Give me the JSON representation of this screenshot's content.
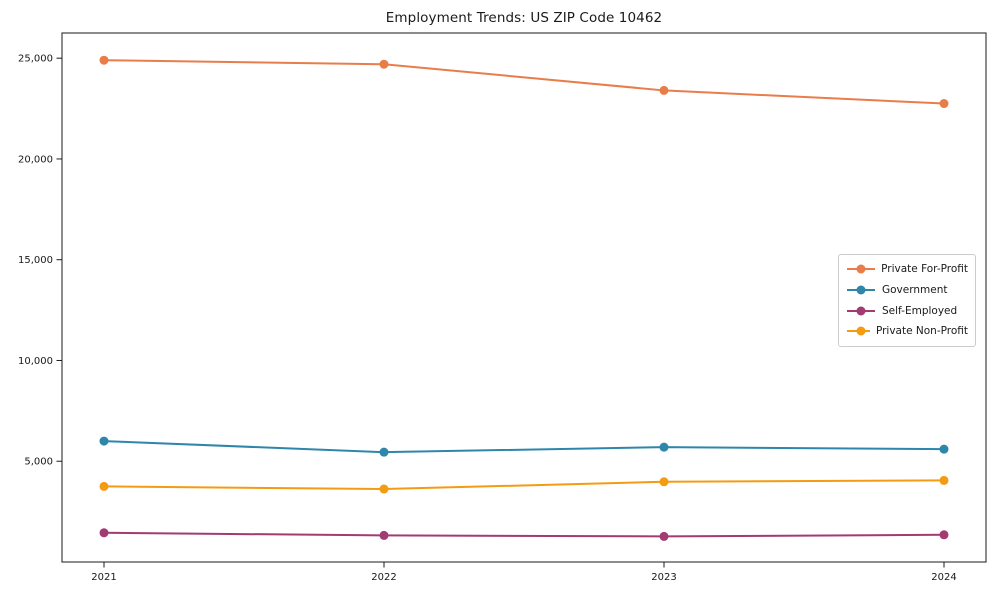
{
  "title": "Employment Trends: US ZIP Code 10462",
  "colors": {
    "background": "#ffffff",
    "axis": "#1a1a1a",
    "legend_border": "#cccccc",
    "for_profit": "#E87D4A",
    "government": "#2E86AB",
    "self_employed": "#A23B72",
    "non_profit": "#F39C12"
  },
  "chart_data": {
    "type": "line",
    "title": "Employment Trends: US ZIP Code 10462",
    "xlabel": "",
    "ylabel": "",
    "x": [
      2021,
      2022,
      2023,
      2024
    ],
    "xticklabels": [
      "2021",
      "2022",
      "2023",
      "2024"
    ],
    "yticks": [
      5000,
      10000,
      15000,
      20000,
      25000
    ],
    "yticklabels": [
      "5,000",
      "10,000",
      "15,000",
      "20,000",
      "25,000"
    ],
    "xlim": [
      2020.85,
      2024.15
    ],
    "ylim": [
      0,
      26250
    ],
    "grid": false,
    "legend_position": "center-right",
    "marker": "circle",
    "series": [
      {
        "name": "Private For-Profit",
        "color": "#E87D4A",
        "values": [
          24900,
          24700,
          23400,
          22750
        ]
      },
      {
        "name": "Government",
        "color": "#2E86AB",
        "values": [
          6000,
          5450,
          5700,
          5600
        ]
      },
      {
        "name": "Self-Employed",
        "color": "#A23B72",
        "values": [
          1450,
          1320,
          1270,
          1350
        ]
      },
      {
        "name": "Private Non-Profit",
        "color": "#F39C12",
        "values": [
          3750,
          3620,
          3980,
          4050
        ]
      }
    ]
  }
}
